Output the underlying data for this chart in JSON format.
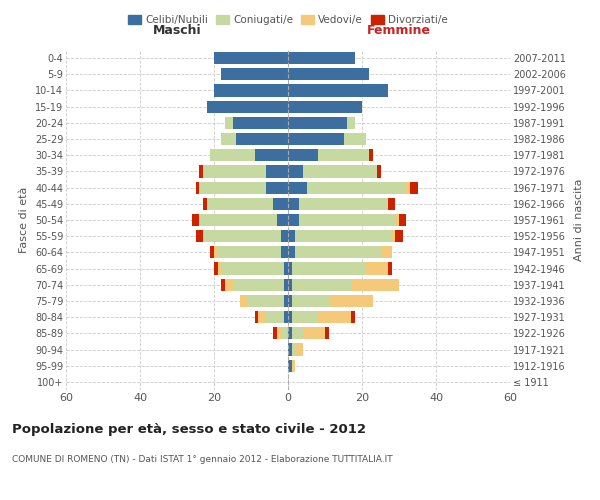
{
  "age_groups": [
    "100+",
    "95-99",
    "90-94",
    "85-89",
    "80-84",
    "75-79",
    "70-74",
    "65-69",
    "60-64",
    "55-59",
    "50-54",
    "45-49",
    "40-44",
    "35-39",
    "30-34",
    "25-29",
    "20-24",
    "15-19",
    "10-14",
    "5-9",
    "0-4"
  ],
  "birth_years": [
    "≤ 1911",
    "1912-1916",
    "1917-1921",
    "1922-1926",
    "1927-1931",
    "1932-1936",
    "1937-1941",
    "1942-1946",
    "1947-1951",
    "1952-1956",
    "1957-1961",
    "1962-1966",
    "1967-1971",
    "1972-1976",
    "1977-1981",
    "1982-1986",
    "1987-1991",
    "1992-1996",
    "1997-2001",
    "2002-2006",
    "2007-2011"
  ],
  "colors": {
    "celibi": "#3d6ea0",
    "coniugati": "#c5d9a0",
    "vedovi": "#f5c97a",
    "divorziati": "#cc2200"
  },
  "maschi": {
    "celibi": [
      0,
      0,
      0,
      0,
      1,
      1,
      1,
      1,
      2,
      2,
      3,
      4,
      6,
      6,
      9,
      14,
      15,
      22,
      20,
      18,
      20
    ],
    "coniugati": [
      0,
      0,
      0,
      2,
      5,
      10,
      14,
      17,
      17,
      21,
      21,
      18,
      18,
      17,
      12,
      4,
      2,
      0,
      0,
      0,
      0
    ],
    "vedovi": [
      0,
      0,
      0,
      1,
      2,
      2,
      2,
      1,
      1,
      0,
      0,
      0,
      0,
      0,
      0,
      0,
      0,
      0,
      0,
      0,
      0
    ],
    "divorziati": [
      0,
      0,
      0,
      1,
      1,
      0,
      1,
      1,
      1,
      2,
      2,
      1,
      1,
      1,
      0,
      0,
      0,
      0,
      0,
      0,
      0
    ]
  },
  "femmine": {
    "celibi": [
      0,
      1,
      1,
      1,
      1,
      1,
      1,
      1,
      2,
      2,
      3,
      3,
      5,
      4,
      8,
      15,
      16,
      20,
      27,
      22,
      18
    ],
    "coniugati": [
      0,
      0,
      1,
      3,
      7,
      10,
      16,
      20,
      23,
      26,
      26,
      24,
      27,
      20,
      14,
      6,
      2,
      0,
      0,
      0,
      0
    ],
    "vedovi": [
      0,
      1,
      2,
      6,
      9,
      12,
      13,
      6,
      3,
      1,
      1,
      0,
      1,
      0,
      0,
      0,
      0,
      0,
      0,
      0,
      0
    ],
    "divorziati": [
      0,
      0,
      0,
      1,
      1,
      0,
      0,
      1,
      0,
      2,
      2,
      2,
      2,
      1,
      1,
      0,
      0,
      0,
      0,
      0,
      0
    ]
  },
  "xlim": 60,
  "title": "Popolazione per età, sesso e stato civile - 2012",
  "subtitle": "COMUNE DI ROMENO (TN) - Dati ISTAT 1° gennaio 2012 - Elaborazione TUTTITALIA.IT",
  "ylabel_left": "Fasce di età",
  "ylabel_right": "Anni di nascita",
  "xlabel_left": "Maschi",
  "xlabel_right": "Femmine",
  "legend_labels": [
    "Celibi/Nubili",
    "Coniugati/e",
    "Vedovi/e",
    "Divorziati/e"
  ],
  "background_color": "#ffffff",
  "grid_color": "#cccccc"
}
